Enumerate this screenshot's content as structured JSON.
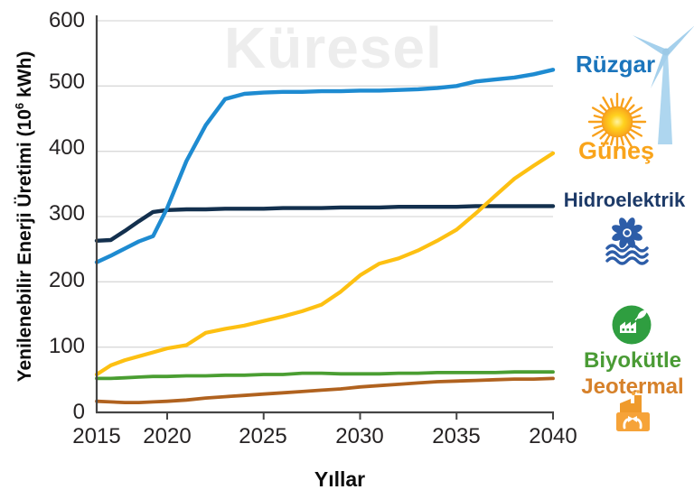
{
  "watermark": "Küresel",
  "y_axis": {
    "title_prefix": "Yenilenebilir Enerji Üretimi (10",
    "title_superscript": "6",
    "title_suffix": " kWh)",
    "ticks": [
      "600",
      "500",
      "400",
      "300",
      "200",
      "100",
      "0"
    ]
  },
  "x_axis": {
    "title": "Yıllar",
    "ticks": [
      "2015",
      "2020",
      "2025",
      "2030",
      "2035",
      "2040"
    ]
  },
  "legend": [
    {
      "label": "Rüzgar",
      "text_color": "#1b75bc",
      "icon": "wind-turbine"
    },
    {
      "label": "Güneş",
      "text_color": "#f9a41b",
      "icon": "sun"
    },
    {
      "label": "Hidroelektrik",
      "text_color": "#1d3a68",
      "icon": "hydro-turbine-waves"
    },
    {
      "label": "Biyokütle",
      "text_color": "#4a9b35",
      "icon": "biomass-factory-leaf"
    },
    {
      "label": "Jeotermal",
      "text_color": "#d6812a",
      "icon": "geothermal-plant"
    }
  ],
  "chart_data": {
    "type": "line",
    "title": "Küresel",
    "xlabel": "Yıllar",
    "ylabel": "Yenilenebilir Enerji Üretimi (10⁶ kWh)",
    "xlim": [
      2015,
      2040
    ],
    "ylim": [
      0,
      600
    ],
    "grid": true,
    "legend_position": "right",
    "x": [
      2015,
      2016,
      2017,
      2018,
      2019,
      2020,
      2021,
      2022,
      2023,
      2024,
      2025,
      2026,
      2027,
      2028,
      2029,
      2030,
      2031,
      2032,
      2033,
      2034,
      2035,
      2036,
      2037,
      2038,
      2039,
      2040
    ],
    "series": [
      {
        "name": "Hidroelektrik",
        "key": "hidroelektrik",
        "color": "#13304e",
        "width": 4.4,
        "values": [
          263,
          264,
          278,
          293,
          307,
          310,
          311,
          311,
          312,
          312,
          312,
          313,
          313,
          313,
          314,
          314,
          314,
          315,
          315,
          315,
          315,
          316,
          316,
          316,
          316,
          316
        ]
      },
      {
        "name": "Biyokütle",
        "key": "biyokutle",
        "color": "#4a9e32",
        "width": 3.8,
        "values": [
          52,
          52,
          53,
          54,
          55,
          55,
          56,
          56,
          57,
          57,
          58,
          58,
          60,
          60,
          59,
          59,
          59,
          60,
          60,
          61,
          61,
          61,
          61,
          62,
          62,
          62
        ]
      },
      {
        "name": "Jeotermal",
        "key": "jeotermal",
        "color": "#b0621f",
        "width": 3.8,
        "values": [
          17,
          16,
          15,
          15,
          16,
          17,
          19,
          22,
          24,
          26,
          28,
          30,
          32,
          34,
          36,
          39,
          41,
          43,
          45,
          47,
          48,
          49,
          50,
          51,
          51,
          52
        ]
      },
      {
        "name": "Güneş",
        "key": "gunes",
        "color": "#fdc012",
        "width": 4.2,
        "values": [
          58,
          72,
          80,
          86,
          92,
          98,
          103,
          122,
          128,
          133,
          140,
          147,
          155,
          165,
          185,
          210,
          228,
          236,
          248,
          263,
          280,
          305,
          332,
          358,
          378,
          397
        ]
      },
      {
        "name": "Rüzgar",
        "key": "ruzgar",
        "color": "#1e8bd1",
        "width": 4.4,
        "values": [
          230,
          240,
          251,
          262,
          270,
          313,
          385,
          440,
          480,
          488,
          490,
          491,
          491,
          492,
          492,
          493,
          493,
          494,
          495,
          497,
          500,
          507,
          510,
          513,
          518,
          525
        ]
      }
    ]
  }
}
